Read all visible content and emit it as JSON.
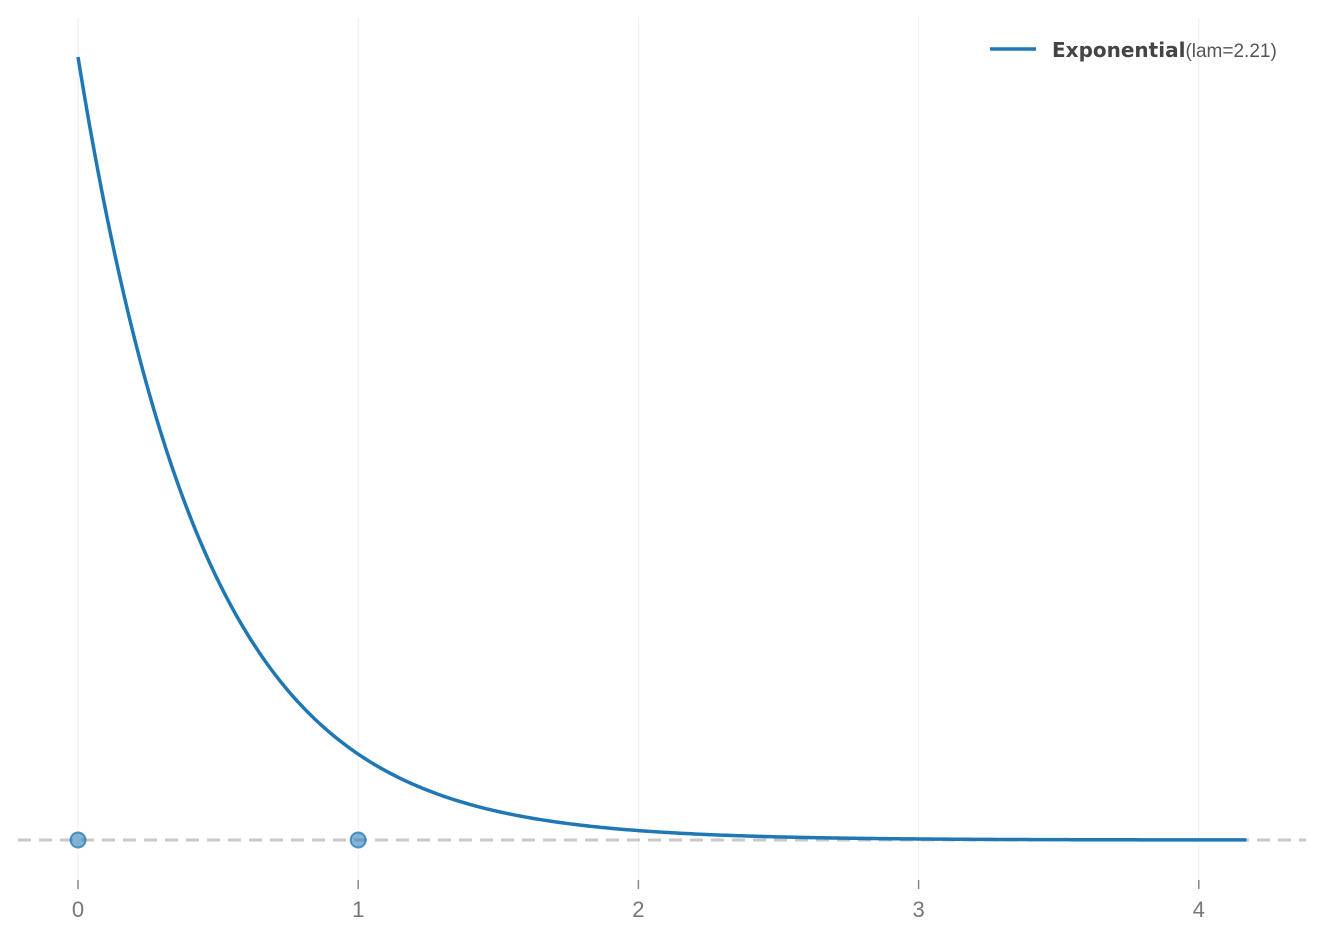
{
  "chart_data": {
    "type": "line",
    "title": "",
    "xlabel": "",
    "ylabel": "",
    "xlim": [
      -0.2,
      4.35
    ],
    "ylim": [
      -0.14,
      2.4
    ],
    "x_ticks": [
      0,
      1,
      2,
      3,
      4
    ],
    "x_tick_labels": [
      "0",
      "1",
      "2",
      "3",
      "4"
    ],
    "grid": "vertical only",
    "legend_position": "top-right",
    "baseline": {
      "y": 0,
      "style": "dashed",
      "color": "#c8c8c8"
    },
    "series": [
      {
        "name": "Exponential",
        "param_label": "(lam=2.21)",
        "distribution": "exponential pdf",
        "lam": 2.21,
        "x_range": [
          0,
          4.17
        ],
        "color": "#1f77b4",
        "points": [
          {
            "x": 0.0,
            "y": 2.21
          },
          {
            "x": 0.25,
            "y": 1.27
          },
          {
            "x": 0.5,
            "y": 0.73
          },
          {
            "x": 0.75,
            "y": 0.42
          },
          {
            "x": 1.0,
            "y": 0.24
          },
          {
            "x": 1.5,
            "y": 0.08
          },
          {
            "x": 2.0,
            "y": 0.026
          },
          {
            "x": 2.5,
            "y": 0.009
          },
          {
            "x": 3.0,
            "y": 0.003
          },
          {
            "x": 3.5,
            "y": 0.001
          },
          {
            "x": 4.17,
            "y": 0.0002
          }
        ]
      }
    ],
    "markers": [
      {
        "x": 0,
        "y": 0,
        "color": "#1f77b4"
      },
      {
        "x": 1,
        "y": 0,
        "color": "#1f77b4"
      }
    ]
  }
}
